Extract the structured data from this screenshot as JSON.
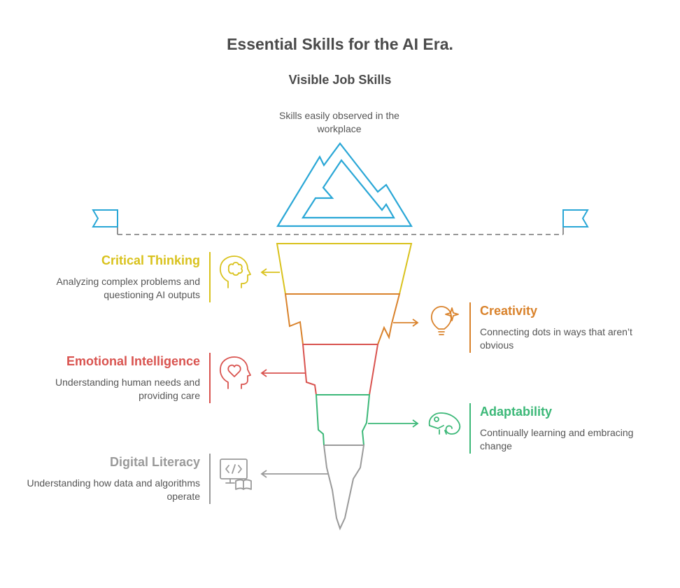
{
  "title": "Essential Skills for the AI Era.",
  "visible": {
    "heading": "Visible Job Skills",
    "description": "Skills easily observed in the workplace"
  },
  "skills": {
    "critical": {
      "title": "Critical Thinking",
      "desc": "Analyzing complex problems and questioning AI outputs",
      "color": "#d9c21d",
      "icon": "head-puzzle-icon"
    },
    "creativity": {
      "title": "Creativity",
      "desc": "Connecting dots in ways that aren’t obvious",
      "color": "#d9822b",
      "icon": "lightbulb-sparkle-icon"
    },
    "emotional": {
      "title": "Emotional Intelligence",
      "desc": "Understanding human needs and providing care",
      "color": "#d9534f",
      "icon": "head-heart-icon"
    },
    "adaptability": {
      "title": "Adaptability",
      "desc": "Continually learning and embracing change",
      "color": "#3cb878",
      "icon": "chameleon-icon"
    },
    "digital": {
      "title": "Digital Literacy",
      "desc": "Understanding how data and algorithms operate",
      "color": "#9a9a9a",
      "icon": "code-monitor-book-icon"
    }
  },
  "colors": {
    "tip": "#2aa7d6",
    "waterline": "#777777",
    "text": "#4a4a4a"
  }
}
